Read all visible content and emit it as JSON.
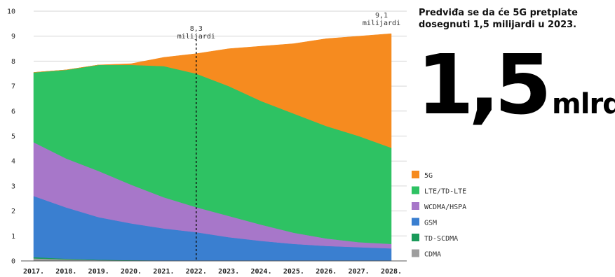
{
  "headline": "Predviđa se da će 5G pretplate dosegnuti 1,5 milijardi u 2023.",
  "big_number": "1,5",
  "big_unit": "mlrd.",
  "chart_data": {
    "type": "area",
    "stacked": true,
    "x": [
      "2017.",
      "2018.",
      "2019.",
      "2020.",
      "2021.",
      "2022.",
      "2023.",
      "2024.",
      "2025.",
      "2026.",
      "2027.",
      "2028."
    ],
    "ylim": [
      0,
      10
    ],
    "yticks": [
      "0",
      "1",
      "2",
      "3",
      "4",
      "5",
      "6",
      "7",
      "8",
      "9",
      "10"
    ],
    "grid": true,
    "legend_position": "right",
    "series": [
      {
        "name": "CDMA",
        "color": "#9e9e9e",
        "values": [
          0.1,
          0.06,
          0.03,
          0.02,
          0.01,
          0.01,
          0.0,
          0.0,
          0.0,
          0.0,
          0.0,
          0.0
        ]
      },
      {
        "name": "TD-SCDMA",
        "color": "#1a9a5a",
        "values": [
          0.05,
          0.03,
          0.02,
          0.01,
          0.01,
          0.0,
          0.0,
          0.0,
          0.0,
          0.0,
          0.0,
          0.0
        ]
      },
      {
        "name": "GSM",
        "color": "#3a7fd0",
        "values": [
          2.45,
          2.05,
          1.7,
          1.47,
          1.28,
          1.14,
          0.95,
          0.8,
          0.68,
          0.6,
          0.55,
          0.5
        ]
      },
      {
        "name": "WCDMA/HSPA",
        "color": "#a777c9",
        "values": [
          2.15,
          1.96,
          1.85,
          1.55,
          1.25,
          1.0,
          0.85,
          0.65,
          0.45,
          0.3,
          0.2,
          0.18
        ]
      },
      {
        "name": "LTE/TD-LTE",
        "color": "#2ec263",
        "values": [
          2.8,
          3.55,
          4.25,
          4.8,
          5.25,
          5.35,
          5.2,
          4.95,
          4.77,
          4.5,
          4.25,
          3.85
        ]
      },
      {
        "name": "5G",
        "color": "#f68b1f",
        "values": [
          0.0,
          0.0,
          0.0,
          0.05,
          0.35,
          0.8,
          1.5,
          2.2,
          2.8,
          3.5,
          4.0,
          4.57
        ]
      }
    ],
    "annotations": [
      {
        "x": "2022.",
        "lines": [
          "8,3",
          "milijardi"
        ],
        "dashed_line": true
      },
      {
        "x": "2028.",
        "lines": [
          "9,1",
          "milijardi"
        ]
      }
    ],
    "legend_order": [
      "5G",
      "LTE/TD-LTE",
      "WCDMA/HSPA",
      "GSM",
      "TD-SCDMA",
      "CDMA"
    ]
  }
}
